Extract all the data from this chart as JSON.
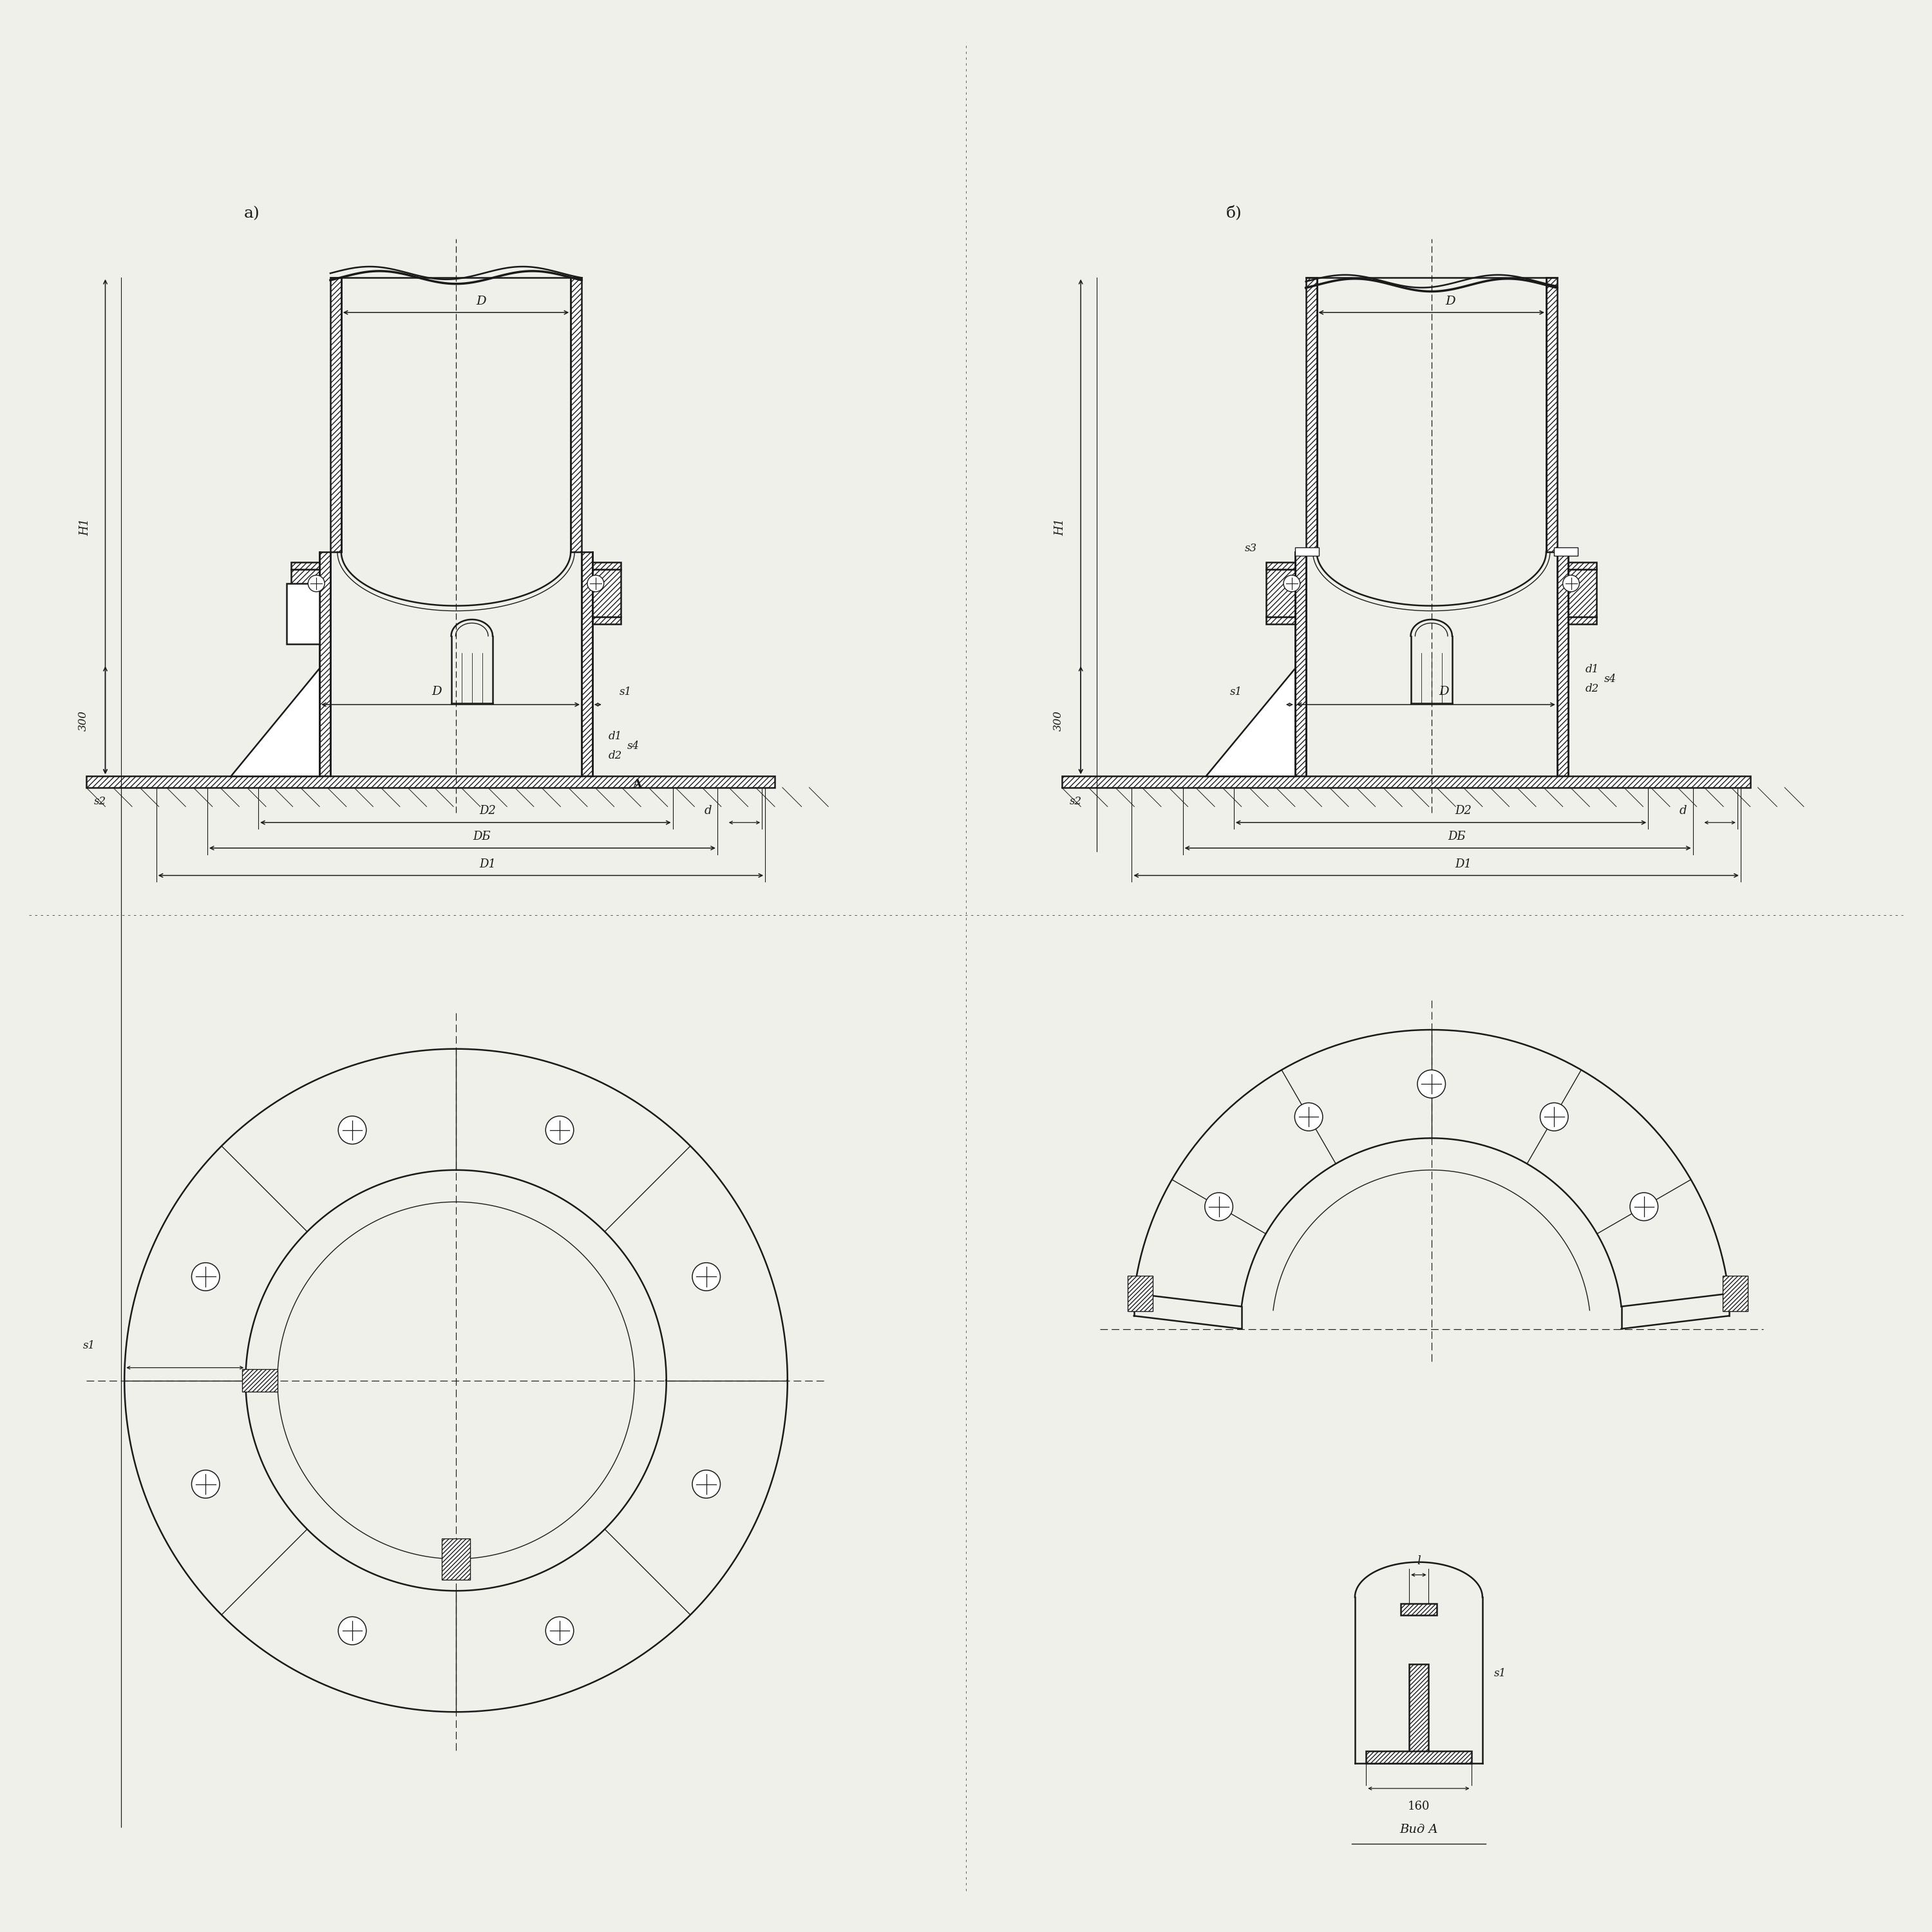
{
  "bg_color": "#f0f0eb",
  "line_color": "#1a1a1a",
  "label_a": "а)",
  "label_b": "б)",
  "dim_D": "D",
  "dim_D1": "D1",
  "dim_D2": "D2",
  "dim_DB": "DБ",
  "dim_d": "d",
  "dim_d1": "d1",
  "dim_d2": "d2",
  "dim_H1": "H1",
  "dim_s1": "s1",
  "dim_s2": "s2",
  "dim_s3": "s3",
  "dim_s4": "s4",
  "dim_300": "300",
  "dim_160": "160",
  "dim_l": "l",
  "label_vidA": "Вид A",
  "font_size": 13
}
